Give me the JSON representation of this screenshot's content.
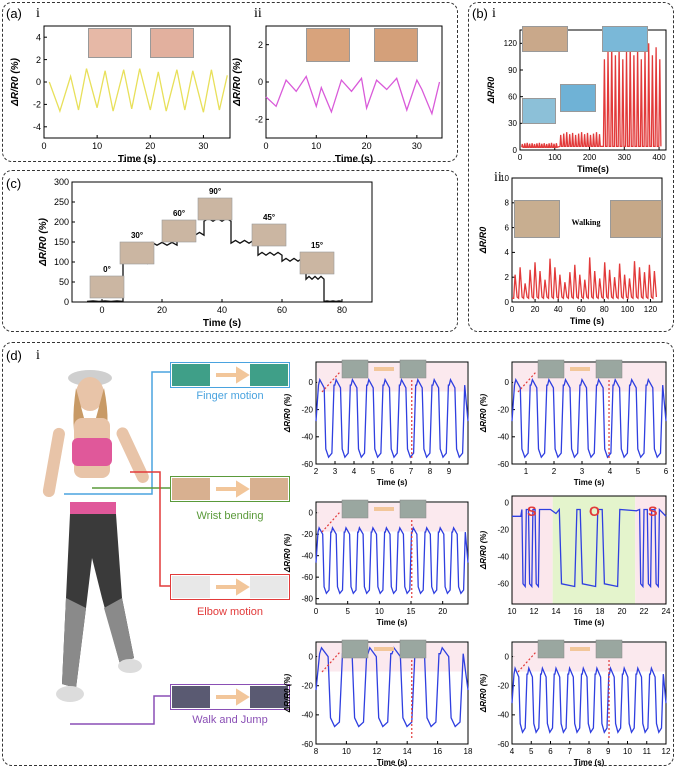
{
  "colors": {
    "yellow": "#e8e05a",
    "magenta": "#d95ad9",
    "red": "#e23a3a",
    "blue": "#2f3fe0",
    "black": "#111111",
    "pink": "#fbe7ec",
    "green": "#e4f4cc",
    "finger": "#4aa3df",
    "wrist": "#5a9a3a",
    "elbow": "#e23a3a",
    "walk": "#8a4fb5"
  },
  "panels": {
    "a": {
      "label": "(a)",
      "sub_i": "i",
      "sub_ii": "ii"
    },
    "b": {
      "label": "(b)",
      "sub_i": "i",
      "sub_ii": "ii",
      "walking": "Walking"
    },
    "c": {
      "label": "(c)"
    },
    "d": {
      "label": "(d)",
      "sub_i": "i"
    }
  },
  "callouts": {
    "finger": "Finger motion",
    "wrist": "Wrist bending",
    "elbow": "Elbow motion",
    "walk": "Walk and Jump"
  },
  "angles": [
    "0°",
    "30°",
    "60°",
    "90°",
    "45°",
    "15°"
  ],
  "chart_data": [
    {
      "id": "a-i",
      "type": "line",
      "color": "yellow",
      "xlabel": "Time (s)",
      "ylabel": "ΔR/R0 (%)",
      "xlim": [
        0,
        35
      ],
      "ylim": [
        -5,
        5
      ],
      "xticks": [
        0,
        10,
        20,
        30
      ],
      "yticks": [
        -4,
        -2,
        0,
        2,
        4
      ],
      "xtick_labels": [
        "0",
        "10",
        "20",
        "30"
      ],
      "ytick_labels": [
        "-4",
        "-2",
        "0",
        "2",
        "4"
      ],
      "x": [
        1,
        3,
        5,
        6.5,
        8,
        10,
        11.5,
        13,
        15,
        16.5,
        18,
        20,
        21.5,
        23,
        25,
        26.5,
        28,
        30,
        31.5,
        33,
        34.5
      ],
      "y": [
        0,
        -2.6,
        0.5,
        -2.5,
        1.2,
        -2.3,
        1.0,
        -2.6,
        1.1,
        -2.4,
        1.2,
        -2.5,
        0.9,
        -2.6,
        1.1,
        -2.5,
        1.0,
        -2.7,
        1.1,
        -2.5,
        0.6
      ]
    },
    {
      "id": "a-ii",
      "type": "line",
      "color": "magenta",
      "xlabel": "Time (s)",
      "ylabel": "ΔR/R0 (%)",
      "xlim": [
        0,
        35
      ],
      "ylim": [
        -3,
        3
      ],
      "xticks": [
        0,
        10,
        20,
        30
      ],
      "yticks": [
        -2,
        0,
        2
      ],
      "xtick_labels": [
        "0",
        "10",
        "20",
        "30"
      ],
      "ytick_labels": [
        "-2",
        "0",
        "2"
      ],
      "x": [
        0,
        2,
        4,
        6,
        8,
        10,
        11,
        13,
        15,
        17,
        19,
        20,
        22,
        24,
        26,
        28,
        30,
        31,
        33,
        34.5
      ],
      "y": [
        -0.8,
        -1.3,
        0.1,
        -0.5,
        0.3,
        -1.3,
        -0.3,
        -1.6,
        0.1,
        -0.5,
        0.2,
        -1.4,
        0.1,
        -0.4,
        0.2,
        -1.5,
        0.1,
        -0.4,
        -1.7,
        0.0
      ]
    },
    {
      "id": "b-i",
      "type": "line",
      "color": "red",
      "xlabel": "Time(s)",
      "ylabel": "ΔR/R0",
      "xlim": [
        0,
        420
      ],
      "ylim": [
        0,
        135
      ],
      "xticks": [
        0,
        100,
        200,
        300,
        400
      ],
      "yticks": [
        0,
        30,
        60,
        90,
        120
      ],
      "xtick_labels": [
        "0",
        "100",
        "200",
        "300",
        "400"
      ],
      "ytick_labels": [
        "0",
        "30",
        "60",
        "90",
        "120"
      ],
      "segments": [
        {
          "x0": 5,
          "x1": 110,
          "n": 15,
          "base": 3,
          "amp": 8
        },
        {
          "x0": 115,
          "x1": 235,
          "n": 14,
          "base": 4,
          "amp": 20
        },
        {
          "x0": 240,
          "x1": 410,
          "n": 16,
          "base": 4,
          "amp": 120
        }
      ]
    },
    {
      "id": "b-ii",
      "type": "line",
      "color": "red",
      "xlabel": "Time (s)",
      "ylabel": "ΔR/R0",
      "xlim": [
        0,
        130
      ],
      "ylim": [
        0,
        10
      ],
      "xticks": [
        0,
        20,
        40,
        60,
        80,
        100,
        120
      ],
      "yticks": [
        0,
        2,
        4,
        6,
        8,
        10
      ],
      "xtick_labels": [
        "0",
        "20",
        "40",
        "60",
        "80",
        "100",
        "120"
      ],
      "ytick_labels": [
        "0",
        "2",
        "4",
        "6",
        "8",
        "10"
      ],
      "peaks": [
        2.2,
        2.8,
        1.5,
        2.6,
        3.2,
        2.5,
        1.8,
        3.5,
        2.8,
        2.2,
        1.6,
        2.4,
        3.0,
        2.2,
        1.8,
        3.6,
        2.5,
        1.9,
        3.2,
        2.6,
        2.0,
        3.1,
        2.2,
        1.9,
        3.3,
        2.8,
        2.4,
        3.0,
        2.5
      ]
    },
    {
      "id": "c",
      "type": "line",
      "color": "black",
      "xlabel": "Time (s)",
      "ylabel": "ΔR/R0 (%)",
      "xlim": [
        -10,
        90
      ],
      "ylim": [
        0,
        300
      ],
      "xticks": [
        0,
        20,
        40,
        60,
        80
      ],
      "yticks": [
        0,
        50,
        100,
        150,
        200,
        250,
        300
      ],
      "xtick_labels": [
        "0",
        "20",
        "40",
        "60",
        "80"
      ],
      "ytick_labels": [
        "0",
        "50",
        "100",
        "150",
        "200",
        "250",
        "300"
      ],
      "levels": [
        {
          "x0": -5,
          "x1": 7,
          "y": 2
        },
        {
          "x0": 7,
          "x1": 15,
          "y": 100
        },
        {
          "x0": 15,
          "x1": 25,
          "y": 145
        },
        {
          "x0": 25,
          "x1": 34,
          "y": 170
        },
        {
          "x0": 34,
          "x1": 43,
          "y": 205
        },
        {
          "x0": 43,
          "x1": 52,
          "y": 150
        },
        {
          "x0": 52,
          "x1": 60,
          "y": 120
        },
        {
          "x0": 60,
          "x1": 68,
          "y": 105
        },
        {
          "x0": 68,
          "x1": 74,
          "y": 60
        },
        {
          "x0": 74,
          "x1": 80,
          "y": 2
        }
      ]
    },
    {
      "id": "d-ii",
      "type": "line",
      "color": "blue",
      "xlabel": "Time (s)",
      "ylabel": "ΔR/R0 (%)",
      "xlim": [
        2,
        10
      ],
      "ylim": [
        -60,
        15
      ],
      "xticks": [
        2,
        3,
        4,
        5,
        6,
        7,
        8,
        9
      ],
      "yticks": [
        -60,
        -40,
        -20,
        0
      ],
      "xtick_labels": [
        "2",
        "3",
        "4",
        "5",
        "6",
        "7",
        "8",
        "9"
      ],
      "ytick_labels": [
        "-60",
        "-40",
        "-20",
        "0"
      ],
      "n": 9,
      "high": -2,
      "low": -55,
      "shade": "pink"
    },
    {
      "id": "d-iii",
      "type": "line",
      "color": "blue",
      "xlabel": "Time (s)",
      "ylabel": "ΔR/R0 (%)",
      "xlim": [
        0.5,
        6
      ],
      "ylim": [
        -60,
        15
      ],
      "xticks": [
        1,
        2,
        3,
        4,
        5,
        6
      ],
      "yticks": [
        -60,
        -40,
        -20,
        0
      ],
      "xtick_labels": [
        "1",
        "2",
        "3",
        "4",
        "5",
        "6"
      ],
      "ytick_labels": [
        "-60",
        "-40",
        "-20",
        "0"
      ],
      "n": 9,
      "high": -2,
      "low": -55,
      "shade": "pink"
    },
    {
      "id": "d-iv",
      "type": "line",
      "color": "blue",
      "xlabel": "Time (s)",
      "ylabel": "ΔR/R0 (%)",
      "xlim": [
        0,
        24
      ],
      "ylim": [
        -85,
        10
      ],
      "xticks": [
        0,
        5,
        10,
        15,
        20
      ],
      "yticks": [
        -80,
        -60,
        -40,
        -20,
        0
      ],
      "xtick_labels": [
        "0",
        "5",
        "10",
        "15",
        "20"
      ],
      "ytick_labels": [
        "-80",
        "-60",
        "-40",
        "-20",
        "0"
      ],
      "n": 11,
      "high": -18,
      "low": -75,
      "shade": "pink"
    },
    {
      "id": "d-v",
      "type": "line",
      "color": "blue",
      "xlabel": "Time (s)",
      "ylabel": "ΔR/R0 (%)",
      "xlim": [
        10,
        24
      ],
      "ylim": [
        -75,
        5
      ],
      "xticks": [
        10,
        12,
        14,
        16,
        18,
        20,
        22,
        24
      ],
      "yticks": [
        -60,
        -40,
        -20,
        0
      ],
      "xtick_labels": [
        "10",
        "12",
        "14",
        "16",
        "18",
        "20",
        "22",
        "24"
      ],
      "ytick_labels": [
        "-60",
        "-40",
        "-20",
        "0"
      ],
      "letters": [
        "S",
        "O",
        "S"
      ]
    },
    {
      "id": "d-vi",
      "type": "line",
      "color": "blue",
      "xlabel": "Time (s)",
      "ylabel": "ΔR/R0 (%)",
      "xlim": [
        8,
        18
      ],
      "ylim": [
        -60,
        10
      ],
      "xticks": [
        8,
        10,
        12,
        14,
        16,
        18
      ],
      "yticks": [
        -60,
        -40,
        -20,
        0
      ],
      "xtick_labels": [
        "8",
        "10",
        "12",
        "14",
        "16",
        "18"
      ],
      "ytick_labels": [
        "-60",
        "-40",
        "-20",
        "0"
      ],
      "n": 6,
      "high": 2,
      "low": -48,
      "shade": "pink"
    },
    {
      "id": "d-vii",
      "type": "line",
      "color": "blue",
      "xlabel": "Time (s)",
      "ylabel": "ΔR/R0 (%)",
      "xlim": [
        4,
        12
      ],
      "ylim": [
        -60,
        10
      ],
      "xticks": [
        4,
        5,
        6,
        7,
        8,
        9,
        10,
        11,
        12
      ],
      "yticks": [
        -60,
        -40,
        -20,
        0
      ],
      "xtick_labels": [
        "4",
        "5",
        "6",
        "7",
        "8",
        "9",
        "10",
        "11",
        "12"
      ],
      "ytick_labels": [
        "-60",
        "-40",
        "-20",
        "0"
      ],
      "n": 11,
      "high": -12,
      "low": -52,
      "shade": "pink"
    }
  ]
}
